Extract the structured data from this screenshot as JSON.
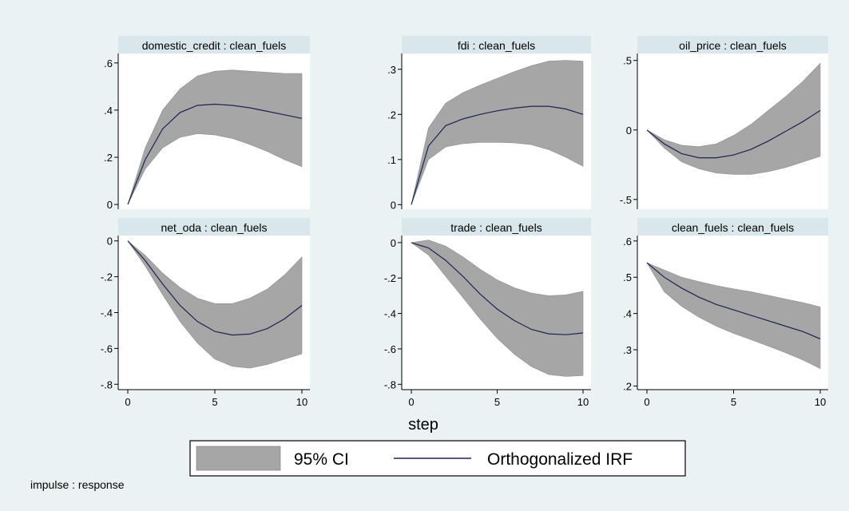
{
  "chart_data": {
    "type": "line",
    "xlabel": "step",
    "note": "impulse : response",
    "legend": {
      "placement": "bottom",
      "items": [
        {
          "label": "95% CI",
          "kind": "band",
          "color": "#a6a6a6"
        },
        {
          "label": "Orthogonalized IRF",
          "kind": "line",
          "color": "#1a2452"
        }
      ]
    },
    "colors": {
      "background": "#eaf2f3",
      "panel": "#ffffff",
      "strip": "#d9e6eb",
      "band": "#a6a6a6",
      "line": "#1a2452"
    },
    "panels": [
      {
        "title": "domestic_credit : clean_fuels",
        "x": [
          0,
          1,
          2,
          3,
          4,
          5,
          6,
          7,
          8,
          9,
          10
        ],
        "irf": [
          0,
          0.19,
          0.32,
          0.39,
          0.42,
          0.425,
          0.42,
          0.41,
          0.395,
          0.38,
          0.365
        ],
        "lower": [
          0,
          0.15,
          0.24,
          0.285,
          0.3,
          0.295,
          0.28,
          0.255,
          0.225,
          0.19,
          0.16
        ],
        "upper": [
          0,
          0.24,
          0.4,
          0.49,
          0.545,
          0.565,
          0.57,
          0.565,
          0.56,
          0.555,
          0.555
        ],
        "ylim": [
          -0.02,
          0.64
        ],
        "yticks": [
          0,
          0.2,
          0.4,
          0.6
        ],
        "ytick_labels": [
          "0",
          ".2",
          ".4",
          ".6"
        ],
        "xticks": [
          0,
          5,
          10
        ],
        "xtick_labels": [
          "0",
          "5",
          "10"
        ],
        "show_x_axis": false
      },
      {
        "title": "fdi : clean_fuels",
        "x": [
          0,
          1,
          2,
          3,
          4,
          5,
          6,
          7,
          8,
          9,
          10
        ],
        "irf": [
          0,
          0.13,
          0.175,
          0.19,
          0.2,
          0.208,
          0.214,
          0.218,
          0.218,
          0.212,
          0.2
        ],
        "lower": [
          0,
          0.1,
          0.128,
          0.135,
          0.138,
          0.138,
          0.137,
          0.133,
          0.122,
          0.105,
          0.085
        ],
        "upper": [
          0,
          0.17,
          0.225,
          0.248,
          0.265,
          0.28,
          0.295,
          0.308,
          0.318,
          0.32,
          0.318
        ],
        "ylim": [
          -0.01,
          0.335
        ],
        "yticks": [
          0,
          0.1,
          0.2,
          0.3
        ],
        "ytick_labels": [
          "0",
          ".1",
          ".2",
          ".3"
        ],
        "xticks": [
          0,
          5,
          10
        ],
        "xtick_labels": [
          "0",
          "5",
          "10"
        ],
        "show_x_axis": false
      },
      {
        "title": "oil_price : clean_fuels",
        "x": [
          0,
          1,
          2,
          3,
          4,
          5,
          6,
          7,
          8,
          9,
          10
        ],
        "irf": [
          0,
          -0.1,
          -0.17,
          -0.2,
          -0.2,
          -0.18,
          -0.14,
          -0.08,
          -0.01,
          0.06,
          0.14
        ],
        "lower": [
          0,
          -0.13,
          -0.23,
          -0.28,
          -0.31,
          -0.32,
          -0.32,
          -0.3,
          -0.27,
          -0.23,
          -0.19
        ],
        "upper": [
          0,
          -0.07,
          -0.11,
          -0.12,
          -0.1,
          -0.04,
          0.04,
          0.14,
          0.24,
          0.35,
          0.48
        ],
        "ylim": [
          -0.57,
          0.55
        ],
        "yticks": [
          -0.5,
          0,
          0.5
        ],
        "ytick_labels": [
          "-.5",
          "0",
          ".5"
        ],
        "xticks": [
          0,
          5,
          10
        ],
        "xtick_labels": [
          "0",
          "5",
          "10"
        ],
        "show_x_axis": false
      },
      {
        "title": "net_oda : clean_fuels",
        "x": [
          0,
          1,
          2,
          3,
          4,
          5,
          6,
          7,
          8,
          9,
          10
        ],
        "irf": [
          0,
          -0.11,
          -0.24,
          -0.36,
          -0.45,
          -0.505,
          -0.525,
          -0.52,
          -0.49,
          -0.435,
          -0.36
        ],
        "lower": [
          0,
          -0.14,
          -0.3,
          -0.45,
          -0.57,
          -0.66,
          -0.7,
          -0.71,
          -0.69,
          -0.66,
          -0.63
        ],
        "upper": [
          0,
          -0.08,
          -0.18,
          -0.26,
          -0.32,
          -0.35,
          -0.35,
          -0.32,
          -0.27,
          -0.19,
          -0.09
        ],
        "ylim": [
          -0.83,
          0.03
        ],
        "yticks": [
          -0.8,
          -0.6,
          -0.4,
          -0.2,
          0
        ],
        "ytick_labels": [
          "-.8",
          "-.6",
          "-.4",
          "-.2",
          "0"
        ],
        "xticks": [
          0,
          5,
          10
        ],
        "xtick_labels": [
          "0",
          "5",
          "10"
        ],
        "show_x_axis": true
      },
      {
        "title": "trade : clean_fuels",
        "x": [
          0,
          1,
          2,
          3,
          4,
          5,
          6,
          7,
          8,
          9,
          10
        ],
        "irf": [
          0,
          -0.03,
          -0.1,
          -0.19,
          -0.29,
          -0.375,
          -0.44,
          -0.49,
          -0.515,
          -0.52,
          -0.51
        ],
        "lower": [
          0,
          -0.07,
          -0.19,
          -0.31,
          -0.43,
          -0.54,
          -0.63,
          -0.7,
          -0.745,
          -0.755,
          -0.75
        ],
        "upper": [
          0,
          0.015,
          -0.02,
          -0.08,
          -0.15,
          -0.21,
          -0.255,
          -0.285,
          -0.3,
          -0.295,
          -0.275
        ],
        "ylim": [
          -0.83,
          0.04
        ],
        "yticks": [
          -0.8,
          -0.6,
          -0.4,
          -0.2,
          0
        ],
        "ytick_labels": [
          "-.8",
          "-.6",
          "-.4",
          "-.2",
          "0"
        ],
        "xticks": [
          0,
          5,
          10
        ],
        "xtick_labels": [
          "0",
          "5",
          "10"
        ],
        "show_x_axis": true
      },
      {
        "title": "clean_fuels : clean_fuels",
        "x": [
          0,
          1,
          2,
          3,
          4,
          5,
          6,
          7,
          8,
          9,
          10
        ],
        "irf": [
          0.54,
          0.5,
          0.47,
          0.445,
          0.425,
          0.41,
          0.395,
          0.38,
          0.365,
          0.35,
          0.33
        ],
        "lower": [
          0.54,
          0.46,
          0.42,
          0.39,
          0.365,
          0.345,
          0.328,
          0.31,
          0.292,
          0.272,
          0.248
        ],
        "upper": [
          0.54,
          0.52,
          0.5,
          0.488,
          0.477,
          0.468,
          0.46,
          0.45,
          0.44,
          0.43,
          0.418
        ],
        "ylim": [
          0.19,
          0.615
        ],
        "yticks": [
          0.2,
          0.3,
          0.4,
          0.5,
          0.6
        ],
        "ytick_labels": [
          ".2",
          ".3",
          ".4",
          ".5",
          ".6"
        ],
        "xticks": [
          0,
          5,
          10
        ],
        "xtick_labels": [
          "0",
          "5",
          "10"
        ],
        "show_x_axis": true
      }
    ]
  }
}
